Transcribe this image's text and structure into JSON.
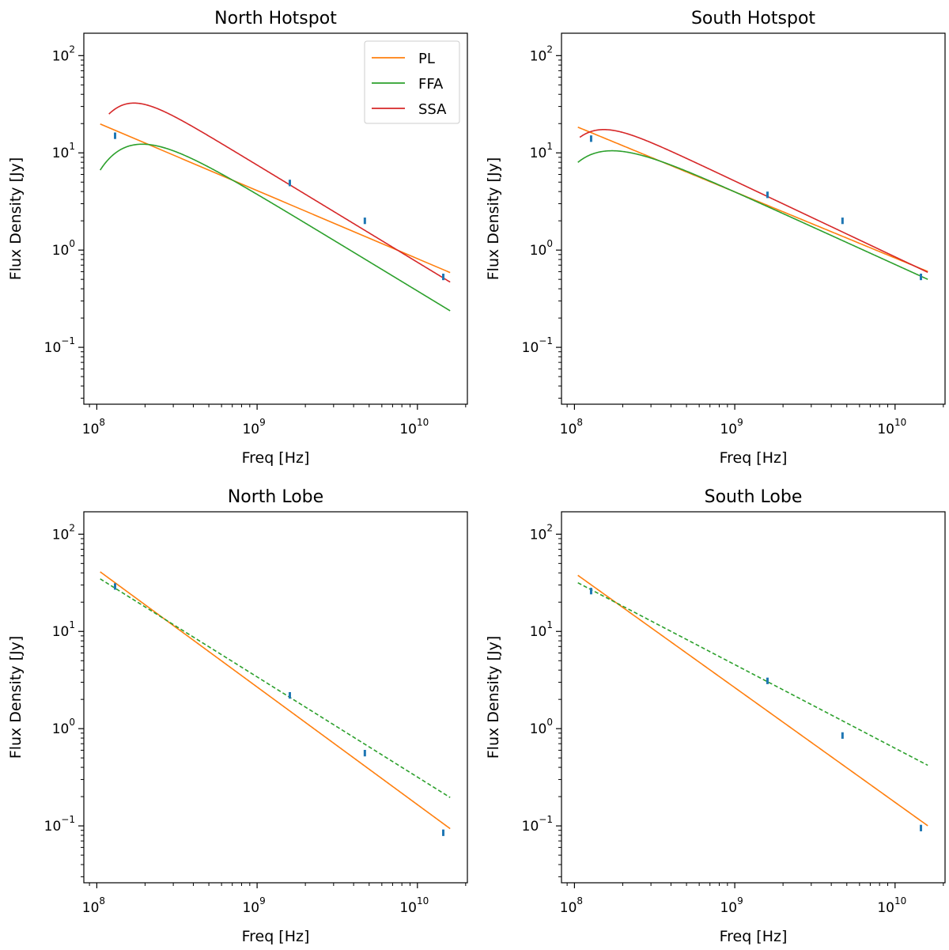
{
  "figure": {
    "layout": "2x2 grid",
    "x_scale": "log",
    "y_scale": "log"
  },
  "legend": {
    "location": "upper right of North Hotspot panel",
    "entries": [
      {
        "label": "PL",
        "color": "#ff7f0e"
      },
      {
        "label": "FFA",
        "color": "#2ca02c"
      },
      {
        "label": "SSA",
        "color": "#d62728"
      }
    ]
  },
  "colors": {
    "data_points": "#1f77b4",
    "PL": "#ff7f0e",
    "FFA": "#2ca02c",
    "SSA": "#d62728"
  },
  "chart_data": [
    {
      "type": "line",
      "title": "North Hotspot",
      "xlabel": "Freq [Hz]",
      "ylabel": "Flux Density [Jy]",
      "xlim": [
        83000000.0,
        20500000000.0
      ],
      "ylim": [
        0.026,
        170
      ],
      "xticks": [
        {
          "base": "10",
          "exp": "8",
          "value": 100000000.0
        },
        {
          "base": "10",
          "exp": "9",
          "value": 1000000000.0
        },
        {
          "base": "10",
          "exp": "10",
          "value": 10000000000.0
        }
      ],
      "yticks": [
        {
          "base": "10",
          "exp": "−1",
          "value": 0.1
        },
        {
          "base": "10",
          "exp": "0",
          "value": 1
        },
        {
          "base": "10",
          "exp": "1",
          "value": 10
        },
        {
          "base": "10",
          "exp": "2",
          "value": 100
        }
      ],
      "data_points": {
        "x": [
          130000000.0,
          1600000000.0,
          4700000000.0,
          14500000000.0
        ],
        "y": [
          15,
          4.9,
          2.0,
          0.53
        ],
        "y_err": [
          0.08,
          0.08,
          0.08,
          0.08
        ]
      },
      "series": [
        {
          "name": "PL",
          "model": "power_law",
          "norm": 20.5,
          "alpha": 0.7,
          "x_range": [
            105000000.0,
            16000000000.0
          ],
          "style": "solid"
        },
        {
          "name": "FFA",
          "model": "free_free_absorption",
          "norm": 38.0,
          "alpha": 1.0,
          "nu_t": 135000000.0,
          "x_range": [
            105000000.0,
            16000000000.0
          ],
          "style": "solid"
        },
        {
          "name": "SSA",
          "model": "synchrotron_self_absorption",
          "norm": 50.0,
          "alpha": 1.0,
          "nu_t": 150000000.0,
          "x_range": [
            119000000.0,
            16000000000.0
          ],
          "style": "solid"
        }
      ]
    },
    {
      "type": "line",
      "title": "South Hotspot",
      "xlabel": "Freq [Hz]",
      "ylabel": "Flux Density [Jy]",
      "xlim": [
        83000000.0,
        20500000000.0
      ],
      "ylim": [
        0.026,
        170
      ],
      "xticks": [
        {
          "base": "10",
          "exp": "8",
          "value": 100000000.0
        },
        {
          "base": "10",
          "exp": "9",
          "value": 1000000000.0
        },
        {
          "base": "10",
          "exp": "10",
          "value": 10000000000.0
        }
      ],
      "yticks": [
        {
          "base": "10",
          "exp": "−1",
          "value": 0.1
        },
        {
          "base": "10",
          "exp": "0",
          "value": 1
        },
        {
          "base": "10",
          "exp": "1",
          "value": 10
        },
        {
          "base": "10",
          "exp": "2",
          "value": 100
        }
      ],
      "data_points": {
        "x": [
          127000000.0,
          1600000000.0,
          4700000000.0,
          14500000000.0
        ],
        "y": [
          14,
          3.7,
          2.0,
          0.53
        ],
        "y_err": [
          0.08,
          0.08,
          0.08,
          0.08
        ]
      },
      "series": [
        {
          "name": "PL",
          "model": "power_law",
          "norm": 19.0,
          "alpha": 0.68,
          "x_range": [
            105000000.0,
            16000000000.0
          ],
          "style": "solid"
        },
        {
          "name": "FFA",
          "model": "free_free_absorption",
          "norm": 22.5,
          "alpha": 0.75,
          "nu_t": 105000000.0,
          "x_range": [
            105000000.0,
            16000000000.0
          ],
          "style": "solid"
        },
        {
          "name": "SSA",
          "model": "synchrotron_self_absorption",
          "norm": 26.0,
          "alpha": 0.78,
          "nu_t": 125000000.0,
          "x_range": [
            108000000.0,
            16000000000.0
          ],
          "style": "solid"
        }
      ]
    },
    {
      "type": "line",
      "title": "North Lobe",
      "xlabel": "Freq [Hz]",
      "ylabel": "Flux Density [Jy]",
      "xlim": [
        83000000.0,
        20500000000.0
      ],
      "ylim": [
        0.026,
        170
      ],
      "xticks": [
        {
          "base": "10",
          "exp": "8",
          "value": 100000000.0
        },
        {
          "base": "10",
          "exp": "9",
          "value": 1000000000.0
        },
        {
          "base": "10",
          "exp": "10",
          "value": 10000000000.0
        }
      ],
      "yticks": [
        {
          "base": "10",
          "exp": "−1",
          "value": 0.1
        },
        {
          "base": "10",
          "exp": "0",
          "value": 1
        },
        {
          "base": "10",
          "exp": "1",
          "value": 10
        },
        {
          "base": "10",
          "exp": "2",
          "value": 100
        }
      ],
      "data_points": {
        "x": [
          130000000.0,
          1600000000.0,
          4700000000.0,
          14500000000.0
        ],
        "y": [
          29,
          2.2,
          0.56,
          0.085
        ],
        "y_err": [
          0.08,
          0.08,
          0.08,
          0.08
        ]
      },
      "series": [
        {
          "name": "PL",
          "model": "power_law",
          "norm": 43.5,
          "alpha": 1.21,
          "x_range": [
            105000000.0,
            16000000000.0
          ],
          "style": "solid"
        },
        {
          "name": "FFA",
          "model": "power_law",
          "norm": 36.5,
          "alpha": 1.03,
          "x_range": [
            105000000.0,
            16000000000.0
          ],
          "style": "dashed"
        }
      ]
    },
    {
      "type": "line",
      "title": "South Lobe",
      "xlabel": "Freq [Hz]",
      "ylabel": "Flux Density [Jy]",
      "xlim": [
        83000000.0,
        20500000000.0
      ],
      "ylim": [
        0.026,
        170
      ],
      "xticks": [
        {
          "base": "10",
          "exp": "8",
          "value": 100000000.0
        },
        {
          "base": "10",
          "exp": "9",
          "value": 1000000000.0
        },
        {
          "base": "10",
          "exp": "10",
          "value": 10000000000.0
        }
      ],
      "yticks": [
        {
          "base": "10",
          "exp": "−1",
          "value": 0.1
        },
        {
          "base": "10",
          "exp": "0",
          "value": 1
        },
        {
          "base": "10",
          "exp": "1",
          "value": 10
        },
        {
          "base": "10",
          "exp": "2",
          "value": 100
        }
      ],
      "data_points": {
        "x": [
          127000000.0,
          1600000000.0,
          4700000000.0,
          14500000000.0
        ],
        "y": [
          26,
          3.1,
          0.85,
          0.095
        ],
        "y_err": [
          0.08,
          0.08,
          0.08,
          0.08
        ]
      },
      "series": [
        {
          "name": "PL",
          "model": "power_law",
          "norm": 40.0,
          "alpha": 1.18,
          "x_range": [
            105000000.0,
            16000000000.0
          ],
          "style": "solid"
        },
        {
          "name": "FFA",
          "model": "power_law",
          "norm": 33.0,
          "alpha": 0.86,
          "x_range": [
            105000000.0,
            16000000000.0
          ],
          "style": "dashed"
        }
      ]
    }
  ]
}
